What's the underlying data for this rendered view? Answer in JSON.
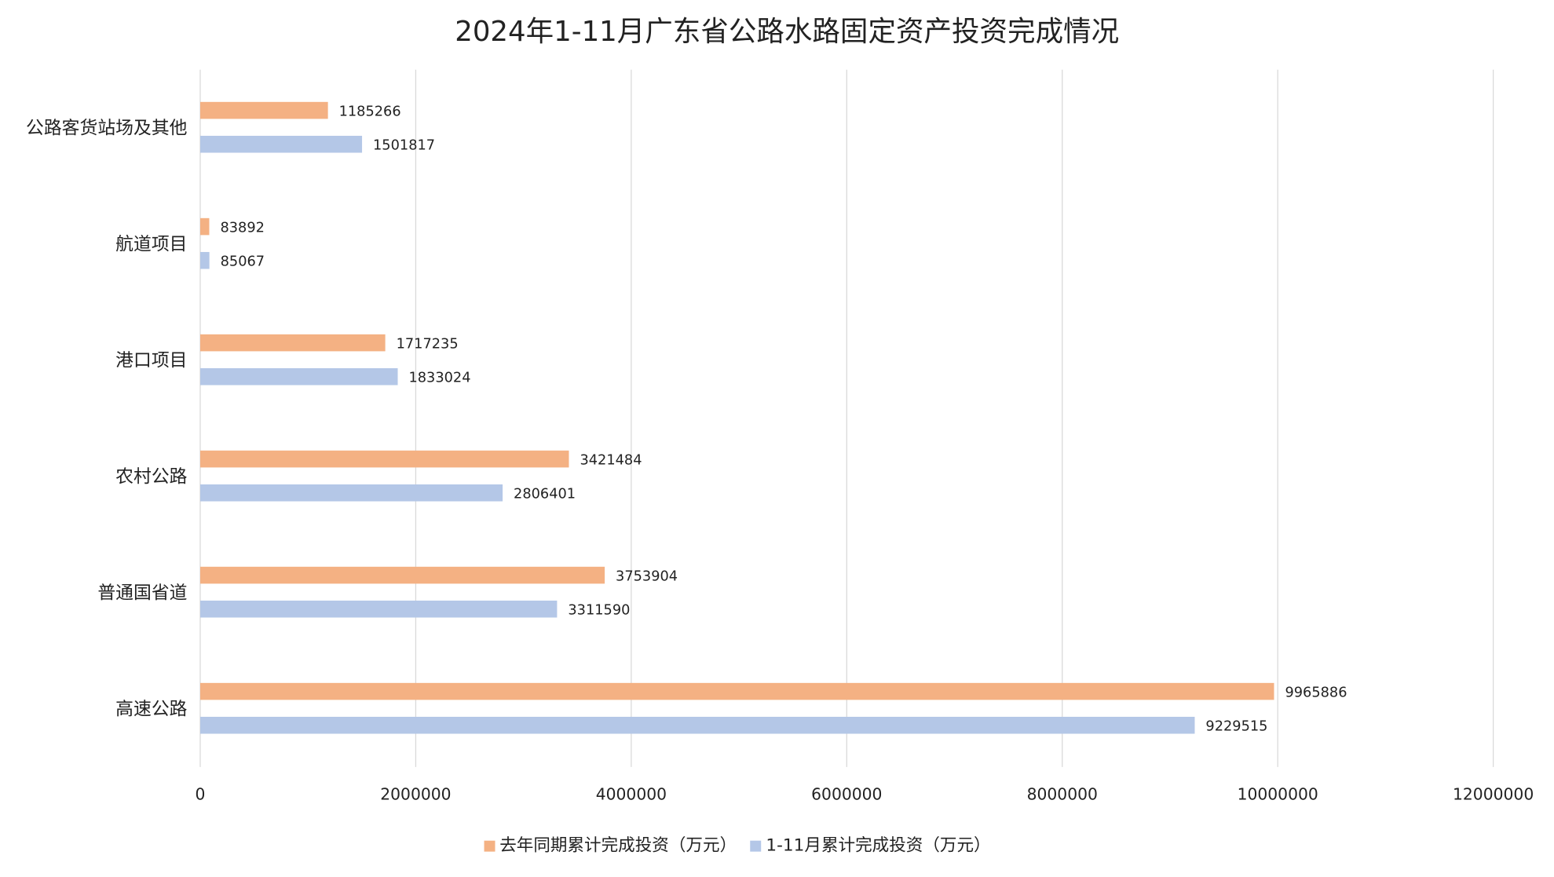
{
  "chart_data": {
    "type": "bar",
    "orientation": "horizontal",
    "title": "2024年1-11月广东省公路水路固定资产投资完成情况",
    "categories": [
      "公路客货站场及其他",
      "航道项目",
      "港口项目",
      "农村公路",
      "普通国省道",
      "高速公路"
    ],
    "series": [
      {
        "name": "去年同期累计完成投资（万元）",
        "color": "#F4B183",
        "values": [
          1185266,
          83892,
          1717235,
          3421484,
          3753904,
          9965886
        ]
      },
      {
        "name": "1-11月累计完成投资（万元）",
        "color": "#B4C7E7",
        "values": [
          1501817,
          85067,
          1833024,
          2806401,
          3311590,
          9229515
        ]
      }
    ],
    "xlim": [
      0,
      12000000
    ],
    "xticks": [
      "0",
      "2000000",
      "4000000",
      "6000000",
      "8000000",
      "10000000",
      "12000000"
    ],
    "grid": true,
    "legend": "bottom"
  }
}
